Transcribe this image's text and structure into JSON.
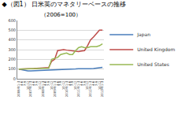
{
  "chart_data": {
    "type": "line",
    "title": "◆（図1） 日米英のマネタリーベースの推移",
    "subtitle": "（2006=100）",
    "categories": [
      "2006年1-3",
      "4-6",
      "7-9",
      "10-12",
      "2007年1-3",
      "4-6",
      "7-9",
      "10-12",
      "2008年1-3",
      "4-6",
      "7-9",
      "10-12",
      "2009年1-3",
      "4-6",
      "7-9",
      "10-12",
      "2010年1-3",
      "4-6",
      "7-9",
      "10-12",
      "2011年1-3",
      "4-6",
      "7-9",
      "10-12",
      "2012年1-3",
      "4-6",
      "7-9",
      "10-12",
      "2013年1-3"
    ],
    "series": [
      {
        "name": "Japan",
        "color": "#4a7ebb",
        "values": [
          100,
          95,
          85,
          82,
          82,
          83,
          84,
          85,
          85,
          86,
          87,
          88,
          90,
          91,
          92,
          93,
          94,
          95,
          100,
          102,
          104,
          103,
          102,
          103,
          104,
          106,
          108,
          112,
          118
        ]
      },
      {
        "name": "United Kingdom",
        "color": "#be4b48",
        "values": [
          100,
          100,
          102,
          103,
          105,
          106,
          108,
          110,
          112,
          113,
          115,
          180,
          200,
          290,
          295,
          300,
          295,
          290,
          285,
          280,
          280,
          285,
          290,
          340,
          400,
          430,
          470,
          500,
          500
        ]
      },
      {
        "name": "United States",
        "color": "#98b954",
        "values": [
          100,
          101,
          102,
          103,
          104,
          104,
          105,
          106,
          106,
          107,
          110,
          200,
          210,
          220,
          250,
          260,
          265,
          250,
          250,
          290,
          320,
          330,
          320,
          320,
          330,
          330,
          330,
          340,
          360
        ]
      }
    ],
    "ylim": [
      0,
      600
    ],
    "yticks": [
      0,
      100,
      200,
      300,
      400,
      500,
      600
    ],
    "grid": true,
    "legend": "right"
  }
}
